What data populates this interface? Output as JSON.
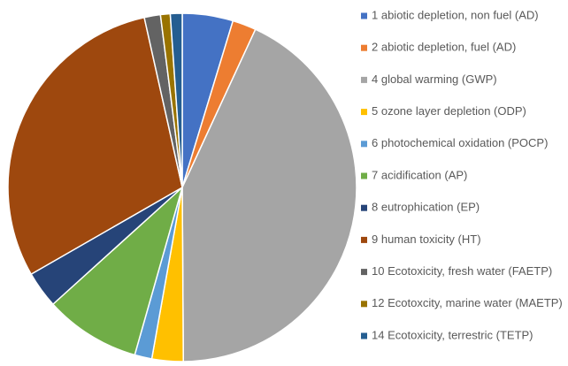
{
  "chart_data": {
    "type": "pie",
    "categories": [
      "1 abiotic depletion, non fuel (AD)",
      "2 abiotic depletion, fuel (AD)",
      "4 global warming (GWP)",
      "5 ozone layer depletion (ODP)",
      "6 photochemical oxidation (POCP)",
      "7 acidification (AP)",
      "8 eutrophication (EP)",
      "9 human toxicity (HT)",
      "10 Ecotoxicity, fresh water (FAETP)",
      "12 Ecotoxcity, marine water (MAETP)",
      "14 Ecotoxicity, terrestric (TETP)"
    ],
    "values": [
      4.7,
      2.2,
      43,
      2.9,
      1.6,
      8.9,
      3.4,
      29.8,
      1.5,
      0.9,
      1.1
    ],
    "colors": [
      "#4472c4",
      "#ed7d31",
      "#a5a5a5",
      "#ffc000",
      "#5b9bd5",
      "#70ad47",
      "#264478",
      "#9e480e",
      "#636363",
      "#997300",
      "#255e91"
    ],
    "legend": "right"
  }
}
